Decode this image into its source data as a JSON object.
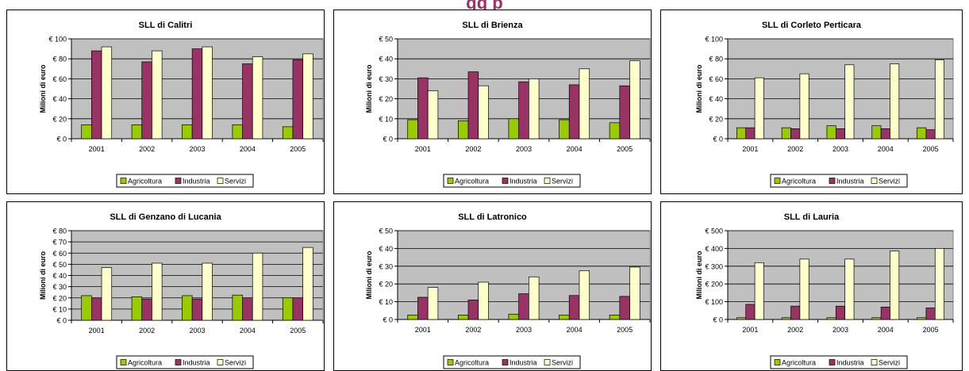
{
  "header": {
    "visible_fragment": "gg     p"
  },
  "colors": {
    "agricoltura": "#99CC00",
    "industria": "#993366",
    "servizi": "#FFFFCC",
    "plot_background": "#C0C0C0"
  },
  "chart_data": [
    {
      "type": "bar",
      "title": "SLL di Calitri",
      "ylabel": "Milioni di euro",
      "xlabel": "",
      "categories": [
        "2001",
        "2002",
        "2003",
        "2004",
        "2005"
      ],
      "ylim": [
        0,
        100
      ],
      "yticks": [
        0,
        20,
        40,
        60,
        80,
        100
      ],
      "ytick_labels": [
        "€ 0",
        "€ 20",
        "€ 40",
        "€ 60",
        "€ 80",
        "€ 100"
      ],
      "grid": true,
      "legend_position": "bottom",
      "series": [
        {
          "name": "Agricoltura",
          "values": [
            14,
            14,
            14,
            14,
            12
          ]
        },
        {
          "name": "Industria",
          "values": [
            88,
            77,
            90,
            75,
            79
          ]
        },
        {
          "name": "Servizi",
          "values": [
            92,
            88,
            92,
            82,
            85
          ]
        }
      ]
    },
    {
      "type": "bar",
      "title": "SLL di Brienza",
      "ylabel": "Milioni di euro",
      "xlabel": "",
      "categories": [
        "2001",
        "2002",
        "2003",
        "2004",
        "2005"
      ],
      "ylim": [
        0,
        50
      ],
      "yticks": [
        0,
        10,
        20,
        30,
        40,
        50
      ],
      "ytick_labels": [
        "€ 0",
        "€ 10",
        "€ 20",
        "€ 30",
        "€ 40",
        "€ 50"
      ],
      "grid": true,
      "legend_position": "bottom",
      "series": [
        {
          "name": "Agricoltura",
          "values": [
            9.5,
            9,
            10,
            9.5,
            8
          ]
        },
        {
          "name": "Industria",
          "values": [
            30.5,
            33.5,
            28.5,
            27,
            26.5
          ]
        },
        {
          "name": "Servizi",
          "values": [
            24,
            26.5,
            30,
            35,
            39
          ]
        }
      ]
    },
    {
      "type": "bar",
      "title": "SLL di Corleto Perticara",
      "ylabel": "Milioni di euro",
      "xlabel": "",
      "categories": [
        "2001",
        "2002",
        "2003",
        "2004",
        "2005"
      ],
      "ylim": [
        0,
        100
      ],
      "yticks": [
        0,
        20,
        40,
        60,
        80,
        100
      ],
      "ytick_labels": [
        "€ 0",
        "€ 20",
        "€ 40",
        "€ 60",
        "€ 80",
        "€ 100"
      ],
      "grid": true,
      "legend_position": "bottom",
      "series": [
        {
          "name": "Agricoltura",
          "values": [
            11,
            11,
            13,
            13,
            11
          ]
        },
        {
          "name": "Industria",
          "values": [
            11,
            10,
            10,
            10,
            9
          ]
        },
        {
          "name": "Servizi",
          "values": [
            61,
            65,
            74,
            75,
            79
          ]
        }
      ]
    },
    {
      "type": "bar",
      "title": "SLL di Genzano di Lucania",
      "ylabel": "Milioni di euro",
      "xlabel": "",
      "categories": [
        "2001",
        "2002",
        "2003",
        "2004",
        "2005"
      ],
      "ylim": [
        0,
        80
      ],
      "yticks": [
        0,
        10,
        20,
        30,
        40,
        50,
        60,
        70,
        80
      ],
      "ytick_labels": [
        "€ 0",
        "€ 10",
        "€ 20",
        "€ 30",
        "€ 40",
        "€ 50",
        "€ 60",
        "€ 70",
        "€ 80"
      ],
      "grid": true,
      "legend_position": "bottom",
      "series": [
        {
          "name": "Agricoltura",
          "values": [
            22,
            21,
            22,
            22.5,
            20
          ]
        },
        {
          "name": "Industria",
          "values": [
            20,
            19,
            19,
            20,
            20
          ]
        },
        {
          "name": "Servizi",
          "values": [
            47,
            51,
            51,
            60,
            65
          ]
        }
      ]
    },
    {
      "type": "bar",
      "title": "SLL di Latronico",
      "ylabel": "Milioni di euro",
      "xlabel": "",
      "categories": [
        "2001",
        "2002",
        "2003",
        "2004",
        "2005"
      ],
      "ylim": [
        0,
        50
      ],
      "yticks": [
        0,
        10,
        20,
        30,
        40,
        50
      ],
      "ytick_labels": [
        "€ 0",
        "€ 10",
        "€ 20",
        "€ 30",
        "€ 40",
        "€ 50"
      ],
      "grid": true,
      "legend_position": "bottom",
      "series": [
        {
          "name": "Agricoltura",
          "values": [
            2.5,
            2.5,
            3,
            2.5,
            2.5
          ]
        },
        {
          "name": "Industria",
          "values": [
            12.5,
            11,
            14.5,
            13.5,
            13
          ]
        },
        {
          "name": "Servizi",
          "values": [
            18,
            21,
            24,
            27.5,
            29.5
          ]
        }
      ]
    },
    {
      "type": "bar",
      "title": "SLL di Lauria",
      "ylabel": "Milioni di euro",
      "xlabel": "",
      "categories": [
        "2001",
        "2002",
        "2003",
        "2004",
        "2005"
      ],
      "ylim": [
        0,
        500
      ],
      "yticks": [
        0,
        100,
        200,
        300,
        400,
        500
      ],
      "ytick_labels": [
        "€ 0",
        "€ 100",
        "€ 200",
        "€ 300",
        "€ 400",
        "€ 500"
      ],
      "grid": true,
      "legend_position": "bottom",
      "series": [
        {
          "name": "Agricoltura",
          "values": [
            10,
            10,
            10,
            10,
            10
          ]
        },
        {
          "name": "Industria",
          "values": [
            85,
            75,
            75,
            70,
            65
          ]
        },
        {
          "name": "Servizi",
          "values": [
            320,
            340,
            340,
            385,
            400
          ]
        }
      ]
    }
  ]
}
